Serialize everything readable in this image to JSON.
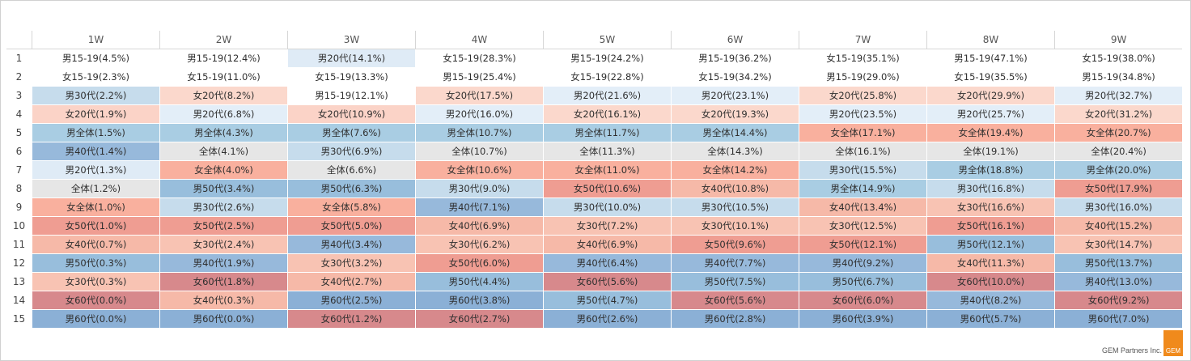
{
  "chart_data": {
    "type": "table",
    "columns": [
      "1W",
      "2W",
      "3W",
      "4W",
      "5W",
      "6W",
      "7W",
      "8W",
      "9W"
    ],
    "ranks": [
      "1",
      "2",
      "3",
      "4",
      "5",
      "6",
      "7",
      "8",
      "9",
      "10",
      "11",
      "12",
      "13",
      "14",
      "15"
    ],
    "cells": [
      [
        {
          "text": "男15-19(4.5%)",
          "color": "#ffffff"
        },
        {
          "text": "女15-19(2.3%)",
          "color": "#ffffff"
        },
        {
          "text": "男30代(2.2%)",
          "color": "#c6dcec"
        },
        {
          "text": "女20代(1.9%)",
          "color": "#fbd3c7"
        },
        {
          "text": "男全体(1.5%)",
          "color": "#a9cde3"
        },
        {
          "text": "男40代(1.4%)",
          "color": "#97b9db"
        },
        {
          "text": "男20代(1.3%)",
          "color": "#dfebf6"
        },
        {
          "text": "全体(1.2%)",
          "color": "#e6e6e6"
        },
        {
          "text": "女全体(1.0%)",
          "color": "#f9b09e"
        },
        {
          "text": "女50代(1.0%)",
          "color": "#ef9d92"
        },
        {
          "text": "女40代(0.7%)",
          "color": "#f6b9a8"
        },
        {
          "text": "男50代(0.3%)",
          "color": "#98bedc"
        },
        {
          "text": "女30代(0.3%)",
          "color": "#f8c3b3"
        },
        {
          "text": "女60代(0.0%)",
          "color": "#d7898c"
        },
        {
          "text": "男60代(0.0%)",
          "color": "#8bb0d6"
        }
      ],
      [
        {
          "text": "男15-19(12.4%)",
          "color": "#ffffff"
        },
        {
          "text": "女15-19(11.0%)",
          "color": "#ffffff"
        },
        {
          "text": "女20代(8.2%)",
          "color": "#fbd8cc"
        },
        {
          "text": "男20代(6.8%)",
          "color": "#e3eef8"
        },
        {
          "text": "男全体(4.3%)",
          "color": "#a9cde3"
        },
        {
          "text": "全体(4.1%)",
          "color": "#e6e6e6"
        },
        {
          "text": "女全体(4.0%)",
          "color": "#f9b09e"
        },
        {
          "text": "男50代(3.4%)",
          "color": "#98bedc"
        },
        {
          "text": "男30代(2.6%)",
          "color": "#c6dcec"
        },
        {
          "text": "女50代(2.5%)",
          "color": "#ef9d92"
        },
        {
          "text": "女30代(2.4%)",
          "color": "#f8c3b3"
        },
        {
          "text": "男40代(1.9%)",
          "color": "#97b9db"
        },
        {
          "text": "女60代(1.8%)",
          "color": "#d7898c"
        },
        {
          "text": "女40代(0.3%)",
          "color": "#f6b9a8"
        },
        {
          "text": "男60代(0.0%)",
          "color": "#8bb0d6"
        }
      ],
      [
        {
          "text": "男20代(14.1%)",
          "color": "#dfebf6"
        },
        {
          "text": "女15-19(13.3%)",
          "color": "#ffffff"
        },
        {
          "text": "男15-19(12.1%)",
          "color": "#ffffff"
        },
        {
          "text": "女20代(10.9%)",
          "color": "#fbd3c7"
        },
        {
          "text": "男全体(7.6%)",
          "color": "#a9cde3"
        },
        {
          "text": "男30代(6.9%)",
          "color": "#c6dcec"
        },
        {
          "text": "全体(6.6%)",
          "color": "#e6e6e6"
        },
        {
          "text": "男50代(6.3%)",
          "color": "#98bedc"
        },
        {
          "text": "女全体(5.8%)",
          "color": "#f9b09e"
        },
        {
          "text": "女50代(5.0%)",
          "color": "#ef9d92"
        },
        {
          "text": "男40代(3.4%)",
          "color": "#97b9db"
        },
        {
          "text": "女30代(3.2%)",
          "color": "#f8c3b3"
        },
        {
          "text": "女40代(2.7%)",
          "color": "#f6b9a8"
        },
        {
          "text": "男60代(2.5%)",
          "color": "#8bb0d6"
        },
        {
          "text": "女60代(1.2%)",
          "color": "#d7898c"
        }
      ],
      [
        {
          "text": "女15-19(28.3%)",
          "color": "#ffffff"
        },
        {
          "text": "男15-19(25.4%)",
          "color": "#ffffff"
        },
        {
          "text": "女20代(17.5%)",
          "color": "#fbd8cc"
        },
        {
          "text": "男20代(16.0%)",
          "color": "#e3eef8"
        },
        {
          "text": "男全体(10.7%)",
          "color": "#a9cde3"
        },
        {
          "text": "全体(10.7%)",
          "color": "#e6e6e6"
        },
        {
          "text": "女全体(10.6%)",
          "color": "#f9b09e"
        },
        {
          "text": "男30代(9.0%)",
          "color": "#c6dcec"
        },
        {
          "text": "男40代(7.1%)",
          "color": "#97b9db"
        },
        {
          "text": "女40代(6.9%)",
          "color": "#f6b9a8"
        },
        {
          "text": "女30代(6.2%)",
          "color": "#f8c3b3"
        },
        {
          "text": "女50代(6.0%)",
          "color": "#ef9d92"
        },
        {
          "text": "男50代(4.4%)",
          "color": "#98bedc"
        },
        {
          "text": "男60代(3.8%)",
          "color": "#8bb0d6"
        },
        {
          "text": "女60代(2.7%)",
          "color": "#d7898c"
        }
      ],
      [
        {
          "text": "男15-19(24.2%)",
          "color": "#ffffff"
        },
        {
          "text": "女15-19(22.8%)",
          "color": "#ffffff"
        },
        {
          "text": "男20代(21.6%)",
          "color": "#e3eef8"
        },
        {
          "text": "女20代(16.1%)",
          "color": "#fbd8cc"
        },
        {
          "text": "男全体(11.7%)",
          "color": "#a9cde3"
        },
        {
          "text": "全体(11.3%)",
          "color": "#e6e6e6"
        },
        {
          "text": "女全体(11.0%)",
          "color": "#f9b09e"
        },
        {
          "text": "女50代(10.6%)",
          "color": "#ef9d92"
        },
        {
          "text": "男30代(10.0%)",
          "color": "#c6dcec"
        },
        {
          "text": "女30代(7.2%)",
          "color": "#f8c3b3"
        },
        {
          "text": "女40代(6.9%)",
          "color": "#f6b9a8"
        },
        {
          "text": "男40代(6.4%)",
          "color": "#97b9db"
        },
        {
          "text": "女60代(5.6%)",
          "color": "#d7898c"
        },
        {
          "text": "男50代(4.7%)",
          "color": "#98bedc"
        },
        {
          "text": "男60代(2.6%)",
          "color": "#8bb0d6"
        }
      ],
      [
        {
          "text": "男15-19(36.2%)",
          "color": "#ffffff"
        },
        {
          "text": "女15-19(34.2%)",
          "color": "#ffffff"
        },
        {
          "text": "男20代(23.1%)",
          "color": "#e3eef8"
        },
        {
          "text": "女20代(19.3%)",
          "color": "#fbd8cc"
        },
        {
          "text": "男全体(14.4%)",
          "color": "#a9cde3"
        },
        {
          "text": "全体(14.3%)",
          "color": "#e6e6e6"
        },
        {
          "text": "女全体(14.2%)",
          "color": "#f9b09e"
        },
        {
          "text": "女40代(10.8%)",
          "color": "#f6b9a8"
        },
        {
          "text": "男30代(10.5%)",
          "color": "#c6dcec"
        },
        {
          "text": "女30代(10.1%)",
          "color": "#f8c3b3"
        },
        {
          "text": "女50代(9.6%)",
          "color": "#ef9d92"
        },
        {
          "text": "男40代(7.7%)",
          "color": "#97b9db"
        },
        {
          "text": "男50代(7.5%)",
          "color": "#98bedc"
        },
        {
          "text": "女60代(5.6%)",
          "color": "#d7898c"
        },
        {
          "text": "男60代(2.8%)",
          "color": "#8bb0d6"
        }
      ],
      [
        {
          "text": "女15-19(35.1%)",
          "color": "#ffffff"
        },
        {
          "text": "男15-19(29.0%)",
          "color": "#ffffff"
        },
        {
          "text": "女20代(25.8%)",
          "color": "#fbd8cc"
        },
        {
          "text": "男20代(23.5%)",
          "color": "#e3eef8"
        },
        {
          "text": "女全体(17.1%)",
          "color": "#f9b09e"
        },
        {
          "text": "全体(16.1%)",
          "color": "#e6e6e6"
        },
        {
          "text": "男30代(15.5%)",
          "color": "#c6dcec"
        },
        {
          "text": "男全体(14.9%)",
          "color": "#a9cde3"
        },
        {
          "text": "女40代(13.4%)",
          "color": "#f6b9a8"
        },
        {
          "text": "女30代(12.5%)",
          "color": "#f8c3b3"
        },
        {
          "text": "女50代(12.1%)",
          "color": "#ef9d92"
        },
        {
          "text": "男40代(9.2%)",
          "color": "#97b9db"
        },
        {
          "text": "男50代(6.7%)",
          "color": "#98bedc"
        },
        {
          "text": "女60代(6.0%)",
          "color": "#d7898c"
        },
        {
          "text": "男60代(3.9%)",
          "color": "#8bb0d6"
        }
      ],
      [
        {
          "text": "男15-19(47.1%)",
          "color": "#ffffff"
        },
        {
          "text": "女15-19(35.5%)",
          "color": "#ffffff"
        },
        {
          "text": "女20代(29.9%)",
          "color": "#fbd8cc"
        },
        {
          "text": "男20代(25.7%)",
          "color": "#e3eef8"
        },
        {
          "text": "女全体(19.4%)",
          "color": "#f9b09e"
        },
        {
          "text": "全体(19.1%)",
          "color": "#e6e6e6"
        },
        {
          "text": "男全体(18.8%)",
          "color": "#a9cde3"
        },
        {
          "text": "男30代(16.8%)",
          "color": "#c6dcec"
        },
        {
          "text": "女30代(16.6%)",
          "color": "#f8c3b3"
        },
        {
          "text": "女50代(16.1%)",
          "color": "#ef9d92"
        },
        {
          "text": "男50代(12.1%)",
          "color": "#98bedc"
        },
        {
          "text": "女40代(11.3%)",
          "color": "#f6b9a8"
        },
        {
          "text": "女60代(10.0%)",
          "color": "#d7898c"
        },
        {
          "text": "男40代(8.2%)",
          "color": "#97b9db"
        },
        {
          "text": "男60代(5.7%)",
          "color": "#8bb0d6"
        }
      ],
      [
        {
          "text": "女15-19(38.0%)",
          "color": "#ffffff"
        },
        {
          "text": "男15-19(34.8%)",
          "color": "#ffffff"
        },
        {
          "text": "男20代(32.7%)",
          "color": "#e3eef8"
        },
        {
          "text": "女20代(31.2%)",
          "color": "#fbd8cc"
        },
        {
          "text": "女全体(20.7%)",
          "color": "#f9b09e"
        },
        {
          "text": "全体(20.4%)",
          "color": "#e6e6e6"
        },
        {
          "text": "男全体(20.0%)",
          "color": "#a9cde3"
        },
        {
          "text": "女50代(17.9%)",
          "color": "#ef9d92"
        },
        {
          "text": "男30代(16.0%)",
          "color": "#c6dcec"
        },
        {
          "text": "女40代(15.2%)",
          "color": "#f6b9a8"
        },
        {
          "text": "女30代(14.7%)",
          "color": "#f8c3b3"
        },
        {
          "text": "男50代(13.7%)",
          "color": "#98bedc"
        },
        {
          "text": "男40代(13.0%)",
          "color": "#97b9db"
        },
        {
          "text": "女60代(9.2%)",
          "color": "#d7898c"
        },
        {
          "text": "男60代(7.0%)",
          "color": "#8bb0d6"
        }
      ]
    ]
  },
  "footer": {
    "credit": "GEM Partners Inc.",
    "logo_text": "GEM",
    "logo_color": "#f08a1c"
  }
}
